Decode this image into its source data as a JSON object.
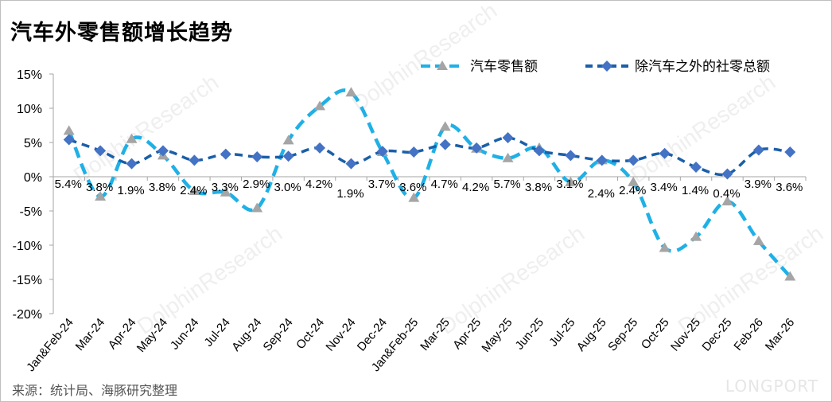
{
  "title": "汽车外零售额增长趋势",
  "source": "来源：统计局、海豚研究整理",
  "brand": "LONGPORT",
  "watermark": "DolphinResearch",
  "chart_data": {
    "type": "line",
    "title": "汽车外零售额增长趋势",
    "xlabel": "",
    "ylabel": "",
    "ylim": [
      -20,
      15
    ],
    "yticks": [
      "15%",
      "10%",
      "5%",
      "0%",
      "-5%",
      "-10%",
      "-15%",
      "-20%"
    ],
    "ytick_values": [
      15,
      10,
      5,
      0,
      -5,
      -10,
      -15,
      -20
    ],
    "legend_position": "top-right",
    "categories": [
      "Jan&Feb-24",
      "Mar-24",
      "Apr-24",
      "May-24",
      "Jun-24",
      "Jul-24",
      "Aug-24",
      "Sep-24",
      "Oct-24",
      "Nov-24",
      "Dec-24",
      "Jan&Feb-25",
      "Mar-25",
      "Apr-25",
      "May-25",
      "Jun-25",
      "Jul-25",
      "Aug-25",
      "Sep-25",
      "Oct-25",
      "Nov-25",
      "Dec-25",
      "Feb-26",
      "Mar-26"
    ],
    "series": [
      {
        "name": "汽车零售额",
        "color": "#1fb0e6",
        "marker": "triangle",
        "values": [
          6.7,
          -2.9,
          5.5,
          3.1,
          -2.1,
          -2.3,
          -4.6,
          5.3,
          10.3,
          12.3,
          3.6,
          -3.1,
          7.3,
          4.1,
          2.7,
          4.2,
          -0.8,
          2.4,
          -0.8,
          -10.4,
          -8.8,
          -3.6,
          -9.4,
          -14.6
        ]
      },
      {
        "name": "除汽车之外的社零总额",
        "color": "#1a5fa8",
        "marker": "diamond",
        "values": [
          5.4,
          3.8,
          1.9,
          3.8,
          2.4,
          3.3,
          2.9,
          3.0,
          4.2,
          1.9,
          3.7,
          3.6,
          4.7,
          4.2,
          5.7,
          3.8,
          3.1,
          2.4,
          2.4,
          3.4,
          1.4,
          0.4,
          3.9,
          3.6
        ],
        "labels": [
          "5.4%",
          "3.8%",
          "1.9%",
          "3.8%",
          "2.4%",
          "3.3%",
          "2.9%",
          "3.0%",
          "4.2%",
          "1.9%",
          "3.7%",
          "3.6%",
          "4.7%",
          "4.2%",
          "5.7%",
          "3.8%",
          "3.1%",
          "2.4%",
          "2.4%",
          "3.4%",
          "1.4%",
          "0.4%",
          "3.9%",
          "3.6%"
        ]
      }
    ]
  }
}
